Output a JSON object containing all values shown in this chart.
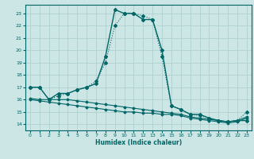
{
  "title": "",
  "xlabel": "Humidex (Indice chaleur)",
  "xlim": [
    -0.5,
    23.5
  ],
  "ylim": [
    13.5,
    23.7
  ],
  "yticks": [
    14,
    15,
    16,
    17,
    18,
    19,
    20,
    21,
    22,
    23
  ],
  "xticks": [
    0,
    1,
    2,
    3,
    4,
    5,
    6,
    7,
    8,
    9,
    10,
    11,
    12,
    13,
    14,
    15,
    16,
    17,
    18,
    19,
    20,
    21,
    22,
    23
  ],
  "background_color": "#cce5e5",
  "grid_color": "#aacccc",
  "line_color": "#006666",
  "lines": [
    {
      "x": [
        0,
        1,
        2,
        3,
        4,
        5,
        6,
        7,
        8,
        9,
        10,
        11,
        12,
        13,
        14,
        15,
        16,
        17,
        18,
        19,
        20,
        21,
        22,
        23
      ],
      "y": [
        17,
        17,
        16,
        16.5,
        16.5,
        16.8,
        17.0,
        17.3,
        19.5,
        23.3,
        23.0,
        23.0,
        22.5,
        22.5,
        20.0,
        15.5,
        15.2,
        14.8,
        14.8,
        14.5,
        14.3,
        14.2,
        14.3,
        14.3
      ],
      "marker": "D",
      "markersize": 2.0,
      "linewidth": 1.0,
      "linestyle": "solid"
    },
    {
      "x": [
        0,
        1,
        2,
        3,
        4,
        5,
        6,
        7,
        8,
        9,
        10,
        11,
        12,
        13,
        14,
        15,
        16,
        17,
        18,
        19,
        20,
        21,
        22,
        23
      ],
      "y": [
        17,
        17,
        16,
        16.3,
        16.5,
        16.8,
        17.0,
        17.5,
        19.0,
        22.0,
        23.0,
        23.0,
        22.8,
        22.5,
        19.5,
        15.5,
        15.2,
        14.8,
        14.7,
        14.5,
        14.3,
        14.2,
        14.3,
        15.0
      ],
      "marker": "D",
      "markersize": 2.0,
      "linewidth": 0.8,
      "linestyle": "dotted"
    },
    {
      "x": [
        0,
        1,
        2,
        3,
        4,
        5,
        6,
        7,
        8,
        9,
        10,
        11,
        12,
        13,
        14,
        15,
        16,
        17,
        18,
        19,
        20,
        21,
        22,
        23
      ],
      "y": [
        16.1,
        16.0,
        16.0,
        16.0,
        16.0,
        15.9,
        15.8,
        15.7,
        15.6,
        15.5,
        15.4,
        15.3,
        15.2,
        15.1,
        15.0,
        14.9,
        14.8,
        14.6,
        14.5,
        14.4,
        14.3,
        14.2,
        14.3,
        14.6
      ],
      "marker": "D",
      "markersize": 1.5,
      "linewidth": 0.8,
      "linestyle": "solid"
    },
    {
      "x": [
        0,
        1,
        2,
        3,
        4,
        5,
        6,
        7,
        8,
        9,
        10,
        11,
        12,
        13,
        14,
        15,
        16,
        17,
        18,
        19,
        20,
        21,
        22,
        23
      ],
      "y": [
        16.0,
        15.9,
        15.8,
        15.7,
        15.6,
        15.5,
        15.4,
        15.3,
        15.2,
        15.1,
        15.0,
        15.0,
        14.9,
        14.9,
        14.8,
        14.8,
        14.7,
        14.5,
        14.4,
        14.3,
        14.2,
        14.1,
        14.2,
        14.5
      ],
      "marker": "D",
      "markersize": 1.5,
      "linewidth": 0.8,
      "linestyle": "solid"
    }
  ]
}
